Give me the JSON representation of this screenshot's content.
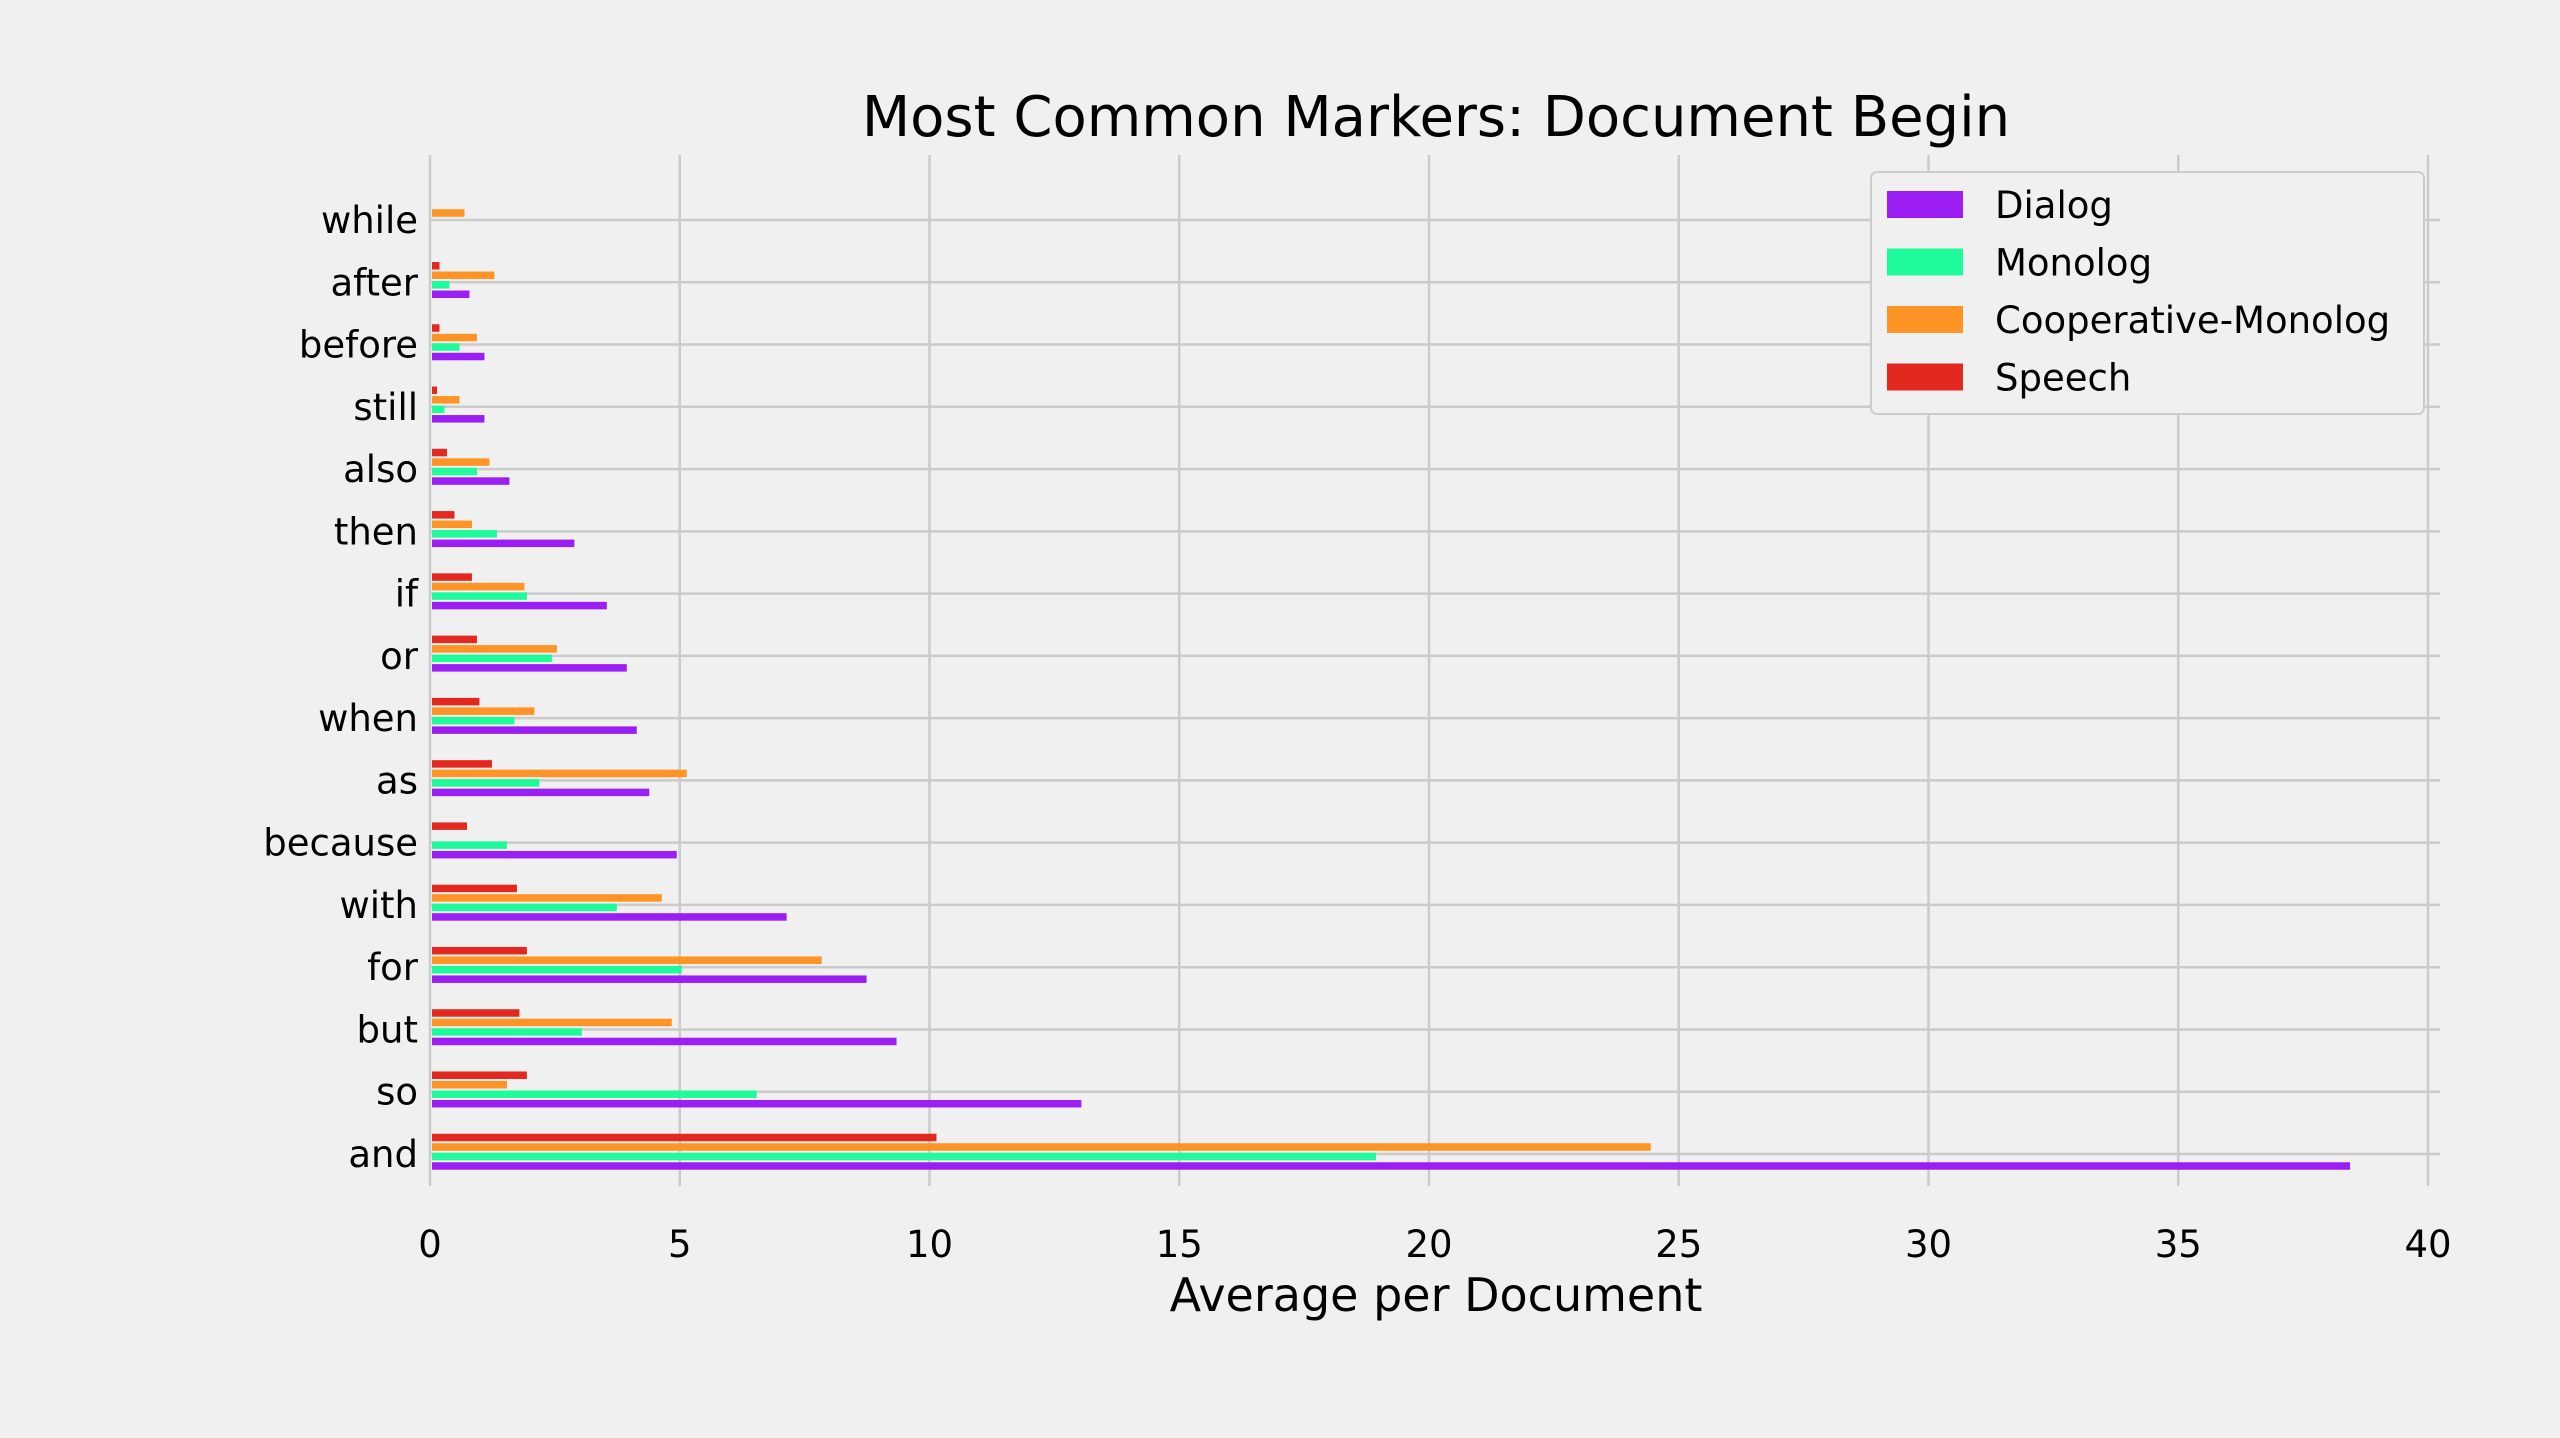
{
  "chart_data": {
    "type": "bar",
    "orientation": "horizontal",
    "title": "Most Common Markers: Document Begin",
    "xlabel": "Average per Document",
    "ylabel": "",
    "xlim": [
      0,
      40
    ],
    "xticks": [
      "0",
      "5",
      "10",
      "15",
      "20",
      "25",
      "30",
      "35",
      "40"
    ],
    "grid": true,
    "legend_position": "top-right",
    "categories": [
      "and",
      "so",
      "but",
      "for",
      "with",
      "because",
      "as",
      "when",
      "or",
      "if",
      "then",
      "also",
      "still",
      "before",
      "after",
      "while"
    ],
    "series": [
      {
        "name": "Dialog",
        "color": "#9b1ff2",
        "values": [
          38.4,
          13.0,
          9.3,
          8.7,
          7.1,
          4.9,
          4.35,
          4.1,
          3.9,
          3.5,
          2.85,
          1.55,
          1.05,
          1.05,
          0.75,
          0
        ]
      },
      {
        "name": "Monolog",
        "color": "#1ffa9b",
        "values": [
          18.9,
          6.5,
          3.0,
          5.0,
          3.7,
          1.5,
          2.15,
          1.65,
          2.4,
          1.9,
          1.3,
          0.9,
          0.25,
          0.55,
          0.35,
          0
        ]
      },
      {
        "name": "Cooperative-Monolog",
        "color": "#fe9425",
        "values": [
          24.4,
          1.5,
          4.8,
          7.8,
          4.6,
          0,
          5.1,
          2.05,
          2.5,
          1.85,
          0.8,
          1.15,
          0.55,
          0.9,
          1.25,
          0.65
        ]
      },
      {
        "name": "Speech",
        "color": "#e3281f",
        "values": [
          10.1,
          1.9,
          1.75,
          1.9,
          1.7,
          0.7,
          1.2,
          0.95,
          0.9,
          0.8,
          0.45,
          0.3,
          0.1,
          0.15,
          0.15,
          0
        ]
      }
    ]
  }
}
